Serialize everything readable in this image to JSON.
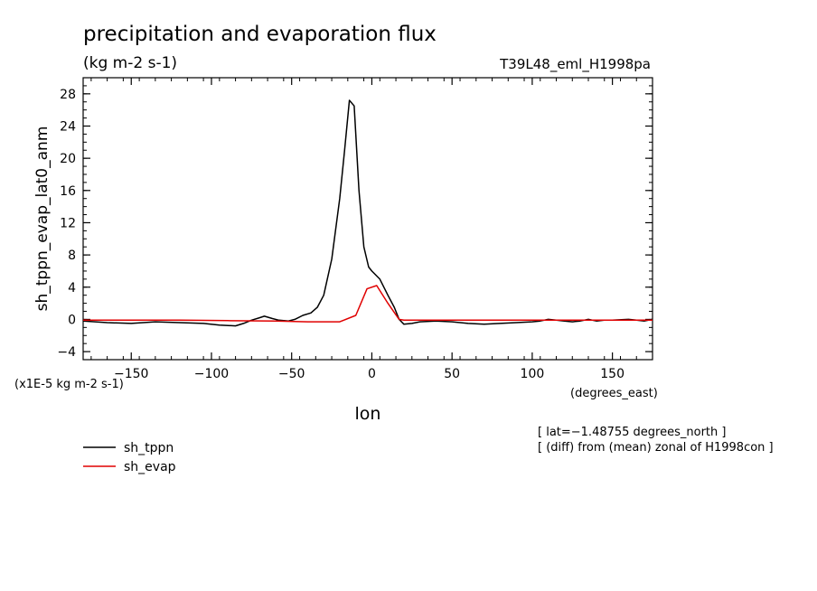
{
  "chart_data": {
    "type": "line",
    "title": "precipitation and evaporation flux",
    "units": "(kg m-2 s-1)",
    "run_label": "T39L48_eml_H1998pa",
    "ylabel": "sh_tppn_evap_lat0_anm",
    "xlabel": "lon",
    "x_unit_label": "(degrees_east)",
    "y_scale_label": "(x1E-5 kg m-2 s-1)",
    "xlim": [
      -180,
      175
    ],
    "ylim": [
      -5,
      30
    ],
    "x_ticks": [
      -150,
      -100,
      -50,
      0,
      50,
      100,
      150
    ],
    "y_ticks": [
      -4,
      0,
      4,
      8,
      12,
      16,
      20,
      24,
      28
    ],
    "x_tick_labels": [
      "−150",
      "−100",
      "−50",
      "0",
      "50",
      "100",
      "150"
    ],
    "y_tick_labels": [
      "−4",
      "0",
      "4",
      "8",
      "12",
      "16",
      "20",
      "24",
      "28"
    ],
    "notes": [
      "[ lat=−1.48755 degrees_north ]",
      "[ (diff) from (mean) zonal of H1998con ]"
    ],
    "series": [
      {
        "name": "sh_tppn",
        "color": "#000000",
        "x": [
          -180,
          -165,
          -150,
          -135,
          -120,
          -105,
          -95,
          -85,
          -80,
          -75,
          -70,
          -67,
          -62,
          -58,
          -52,
          -48,
          -43,
          -38,
          -34,
          -30,
          -25,
          -20,
          -17,
          -14,
          -11,
          -8,
          -5,
          -2,
          0,
          5,
          10,
          14,
          17,
          20,
          25,
          30,
          40,
          50,
          60,
          70,
          80,
          90,
          100,
          105,
          110,
          115,
          120,
          125,
          130,
          135,
          140,
          145,
          150,
          160,
          165,
          170,
          175
        ],
        "y": [
          -0.2,
          -0.4,
          -0.5,
          -0.3,
          -0.4,
          -0.5,
          -0.7,
          -0.8,
          -0.5,
          -0.1,
          0.2,
          0.4,
          0.1,
          -0.1,
          -0.2,
          0.0,
          0.5,
          0.8,
          1.5,
          3.0,
          7.5,
          15.0,
          21.0,
          27.2,
          26.5,
          16.0,
          9.0,
          6.5,
          6.0,
          5.0,
          3.0,
          1.5,
          0.0,
          -0.6,
          -0.5,
          -0.3,
          -0.2,
          -0.3,
          -0.5,
          -0.6,
          -0.5,
          -0.4,
          -0.3,
          -0.2,
          0.0,
          -0.1,
          -0.2,
          -0.3,
          -0.2,
          0.0,
          -0.2,
          -0.1,
          -0.1,
          0.0,
          -0.1,
          -0.2,
          0.0
        ]
      },
      {
        "name": "sh_evap",
        "color": "#e00000",
        "x": [
          -180,
          -150,
          -120,
          -90,
          -60,
          -40,
          -20,
          -10,
          -3,
          3,
          10,
          17,
          20,
          40,
          80,
          120,
          150,
          175
        ],
        "y": [
          -0.1,
          -0.1,
          -0.1,
          -0.15,
          -0.2,
          -0.3,
          -0.3,
          0.5,
          3.8,
          4.2,
          2.0,
          0.0,
          -0.1,
          -0.1,
          -0.1,
          -0.1,
          -0.1,
          -0.1
        ]
      }
    ]
  }
}
